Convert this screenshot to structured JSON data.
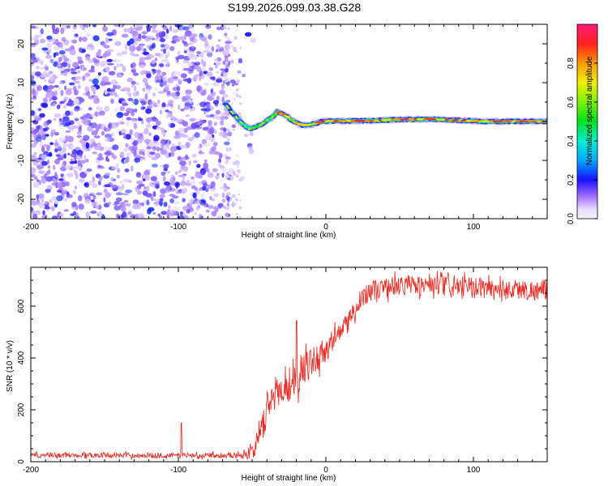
{
  "title": "S199.2026.099.03.38.G28",
  "chart_data": [
    {
      "type": "heatmap",
      "xlabel": "Height of straight line (km)",
      "ylabel": "Frequency (Hz)",
      "xlim": [
        -200,
        150
      ],
      "ylim": [
        -25,
        25
      ],
      "xticks": [
        -200,
        -100,
        0,
        100
      ],
      "yticks": [
        -20,
        -10,
        0,
        10,
        20
      ],
      "noise_region": [
        -200,
        -65
      ],
      "colorbar": {
        "label": "Normalized spectral amplitude",
        "range": [
          0,
          1
        ],
        "ticks": [
          0.0,
          0.2,
          0.4,
          0.6,
          0.8
        ],
        "tick_labels": [
          "0.0",
          "0.2",
          "0.4",
          "0.6",
          "0.8"
        ]
      },
      "ridge": {
        "x": [
          -68,
          -64,
          -60,
          -56,
          -52,
          -48,
          -44,
          -40,
          -36,
          -33,
          -30,
          -27,
          -24,
          -20,
          -16,
          -12,
          -8,
          -4,
          0,
          10,
          30,
          50,
          70,
          90,
          110,
          130,
          150
        ],
        "y": [
          4.5,
          2.5,
          0.8,
          -0.8,
          -1.8,
          -1.5,
          -0.8,
          0.2,
          1.2,
          2.5,
          2.0,
          1.5,
          0.6,
          -0.4,
          -0.9,
          -0.9,
          -0.6,
          -0.1,
          0.1,
          0.1,
          0.2,
          0.5,
          0.6,
          0.3,
          0.0,
          0.0,
          0.0
        ],
        "amplitude": [
          0.3,
          0.25,
          0.3,
          0.45,
          0.6,
          0.7,
          0.7,
          0.6,
          0.6,
          0.9,
          0.8,
          0.8,
          0.75,
          0.85,
          0.9,
          0.9,
          0.9,
          0.95,
          0.9,
          0.9,
          0.95,
          0.95,
          0.9,
          0.9,
          0.9,
          0.9,
          0.9
        ]
      }
    },
    {
      "type": "line",
      "xlabel": "Height of straight line (km)",
      "ylabel": "SNR (10 * v/v)",
      "xlim": [
        -200,
        150
      ],
      "ylim": [
        0,
        750
      ],
      "xticks": [
        -200,
        -100,
        0,
        100
      ],
      "yticks": [
        0,
        200,
        400,
        600
      ],
      "series": [
        {
          "name": "SNR",
          "color": "#e8271e",
          "x": [
            -200,
            -180,
            -160,
            -140,
            -120,
            -100,
            -80,
            -60,
            -55,
            -50,
            -45,
            -42,
            -40,
            -38,
            -35,
            -30,
            -25,
            -20,
            -15,
            -10,
            -5,
            0,
            5,
            10,
            15,
            20,
            25,
            30,
            40,
            50,
            60,
            70,
            80,
            90,
            100,
            110,
            120,
            130,
            140,
            150
          ],
          "values": [
            25,
            25,
            26,
            25,
            24,
            24,
            25,
            25,
            30,
            40,
            90,
            150,
            200,
            230,
            260,
            280,
            300,
            320,
            360,
            380,
            410,
            430,
            470,
            500,
            540,
            580,
            640,
            660,
            670,
            680,
            680,
            680,
            675,
            675,
            670,
            670,
            665,
            665,
            660,
            660
          ],
          "noise_amp": [
            10,
            10,
            10,
            10,
            10,
            10,
            10,
            10,
            20,
            30,
            50,
            60,
            60,
            60,
            60,
            70,
            70,
            70,
            65,
            60,
            55,
            50,
            45,
            45,
            45,
            45,
            40,
            40,
            40,
            40,
            40,
            40,
            40,
            40,
            40,
            40,
            40,
            40,
            40,
            40
          ],
          "spikes": [
            {
              "x": -20,
              "y": 545
            },
            {
              "x": -98,
              "y": 150
            }
          ]
        }
      ]
    }
  ]
}
